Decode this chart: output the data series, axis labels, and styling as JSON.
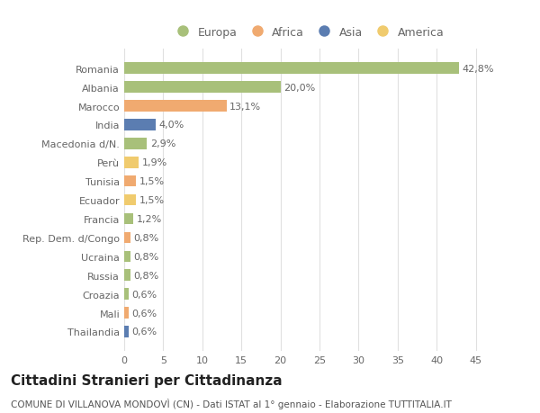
{
  "categories": [
    "Romania",
    "Albania",
    "Marocco",
    "India",
    "Macedonia d/N.",
    "Perù",
    "Tunisia",
    "Ecuador",
    "Francia",
    "Rep. Dem. d/Congo",
    "Ucraina",
    "Russia",
    "Croazia",
    "Mali",
    "Thailandia"
  ],
  "values": [
    42.8,
    20.0,
    13.1,
    4.0,
    2.9,
    1.9,
    1.5,
    1.5,
    1.2,
    0.8,
    0.8,
    0.8,
    0.6,
    0.6,
    0.6
  ],
  "labels": [
    "42,8%",
    "20,0%",
    "13,1%",
    "4,0%",
    "2,9%",
    "1,9%",
    "1,5%",
    "1,5%",
    "1,2%",
    "0,8%",
    "0,8%",
    "0,8%",
    "0,6%",
    "0,6%",
    "0,6%"
  ],
  "continents": [
    "Europa",
    "Europa",
    "Africa",
    "Asia",
    "Europa",
    "America",
    "Africa",
    "America",
    "Europa",
    "Africa",
    "Europa",
    "Europa",
    "Europa",
    "Africa",
    "Asia"
  ],
  "continent_colors": {
    "Europa": "#a8c07a",
    "Africa": "#f0aa70",
    "Asia": "#5b7db1",
    "America": "#f0cb6e"
  },
  "legend_order": [
    "Europa",
    "Africa",
    "Asia",
    "America"
  ],
  "title": "Cittadini Stranieri per Cittadinanza",
  "subtitle": "COMUNE DI VILLANOVA MONDOVÌ (CN) - Dati ISTAT al 1° gennaio - Elaborazione TUTTITALIA.IT",
  "xlim": [
    0,
    47
  ],
  "xticks": [
    0,
    5,
    10,
    15,
    20,
    25,
    30,
    35,
    40,
    45
  ],
  "bg_color": "#ffffff",
  "grid_color": "#e0e0e0",
  "bar_height": 0.6,
  "title_fontsize": 11,
  "subtitle_fontsize": 7.5,
  "label_fontsize": 8,
  "tick_fontsize": 8,
  "legend_fontsize": 9
}
